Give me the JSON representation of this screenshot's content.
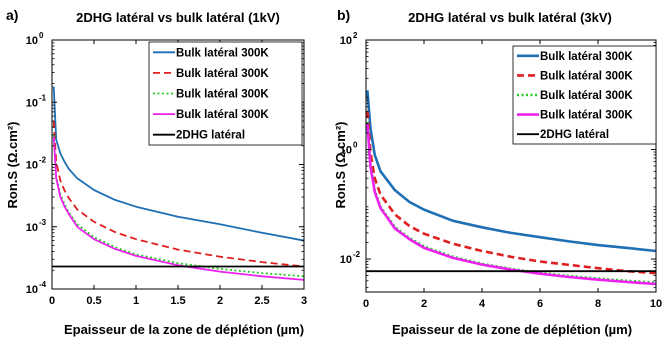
{
  "chart_data": [
    {
      "panel_label": "a)",
      "type": "line",
      "title": "2DHG latéral vs bulk latéral (1kV)",
      "xlabel": "Epaisseur de la zone de déplétion (µm)",
      "ylabel": "Ron.S (Ω.cm²)",
      "xscale": "linear",
      "yscale": "log",
      "xlim": [
        0,
        3
      ],
      "ylim": [
        0.0001,
        1
      ],
      "x_ticks": [
        0,
        0.5,
        1,
        1.5,
        2,
        2.5,
        3
      ],
      "x_tick_labels": [
        "0",
        "0.5",
        "1",
        "1.5",
        "2",
        "2.5",
        "3"
      ],
      "y_ticks": [
        0.0001,
        0.001,
        0.01,
        0.1,
        1
      ],
      "y_tick_labels": [
        [
          "10",
          "-4"
        ],
        [
          "10",
          "-3"
        ],
        [
          "10",
          "-2"
        ],
        [
          "10",
          "-1"
        ],
        [
          "10",
          "0"
        ]
      ],
      "grid": false,
      "legend_position": "top-right",
      "series": [
        {
          "name": "Bulk latéral 300K",
          "color": "#1f6fb5",
          "dash": "solid",
          "x": [
            0.02,
            0.05,
            0.1,
            0.15,
            0.2,
            0.3,
            0.5,
            0.75,
            1,
            1.5,
            2,
            2.5,
            3
          ],
          "y": [
            0.18,
            0.025,
            0.015,
            0.011,
            0.0085,
            0.006,
            0.0039,
            0.0027,
            0.0021,
            0.00145,
            0.0011,
            0.0008,
            0.0006
          ]
        },
        {
          "name": "Bulk latéral 300K",
          "color": "#e02020",
          "dash": "dashed",
          "x": [
            0.02,
            0.05,
            0.1,
            0.15,
            0.2,
            0.3,
            0.5,
            0.75,
            1,
            1.5,
            2,
            2.5,
            3
          ],
          "y": [
            0.05,
            0.011,
            0.0055,
            0.0038,
            0.0029,
            0.0019,
            0.0012,
            0.00082,
            0.00063,
            0.00043,
            0.00033,
            0.00027,
            0.00023
          ]
        },
        {
          "name": "Bulk latéral 300K",
          "color": "#22cc22",
          "dash": "dotted",
          "x": [
            0.02,
            0.05,
            0.1,
            0.15,
            0.2,
            0.3,
            0.5,
            0.75,
            1,
            1.5,
            2,
            2.5,
            3
          ],
          "y": [
            0.03,
            0.0065,
            0.0033,
            0.0023,
            0.0017,
            0.0011,
            0.00068,
            0.00047,
            0.00036,
            0.00026,
            0.00021,
            0.00018,
            0.00016
          ]
        },
        {
          "name": "Bulk latéral 300K",
          "color": "#ee22ee",
          "dash": "solid",
          "x": [
            0.02,
            0.05,
            0.1,
            0.15,
            0.2,
            0.3,
            0.5,
            0.75,
            1,
            1.5,
            2,
            2.5,
            3
          ],
          "y": [
            0.028,
            0.006,
            0.003,
            0.0021,
            0.0016,
            0.001,
            0.00063,
            0.00044,
            0.00034,
            0.00024,
            0.00019,
            0.00016,
            0.00014
          ]
        },
        {
          "name": "2DHG latéral",
          "color": "#000000",
          "dash": "solid",
          "x": [
            0,
            3
          ],
          "y": [
            0.00023,
            0.00023
          ]
        }
      ]
    },
    {
      "panel_label": "b)",
      "type": "line",
      "title": "2DHG latéral vs bulk latéral (3kV)",
      "xlabel": "Epaisseur de la zone de déplétion (µm)",
      "ylabel": "Ron.S (Ω.cm²)",
      "xscale": "linear",
      "yscale": "log",
      "xlim": [
        0,
        10
      ],
      "ylim": [
        0.0025,
        100
      ],
      "x_ticks": [
        0,
        2,
        4,
        6,
        8,
        10
      ],
      "x_tick_labels": [
        "0",
        "2",
        "4",
        "6",
        "8",
        "10"
      ],
      "y_ticks": [
        0.01,
        1,
        100
      ],
      "y_tick_labels": [
        [
          "10",
          "-2"
        ],
        [
          "10",
          "0"
        ],
        [
          "10",
          "2"
        ]
      ],
      "grid": false,
      "legend_position": "top-right",
      "series": [
        {
          "name": "Bulk latéral 300K",
          "color": "#1f6fb5",
          "dash": "solid",
          "x": [
            0.05,
            0.15,
            0.3,
            0.5,
            1,
            1.5,
            2,
            3,
            4,
            5,
            6,
            7,
            8,
            9,
            10
          ],
          "y": [
            12,
            2.5,
            0.8,
            0.4,
            0.18,
            0.11,
            0.08,
            0.05,
            0.038,
            0.03,
            0.025,
            0.021,
            0.018,
            0.016,
            0.014
          ]
        },
        {
          "name": "Bulk latéral 300K",
          "color": "#e02020",
          "dash": "dashed",
          "x": [
            0.05,
            0.15,
            0.3,
            0.5,
            1,
            1.5,
            2,
            3,
            4,
            5,
            6,
            7,
            8,
            9,
            10
          ],
          "y": [
            5,
            0.9,
            0.3,
            0.15,
            0.065,
            0.04,
            0.029,
            0.019,
            0.014,
            0.011,
            0.009,
            0.0078,
            0.0068,
            0.006,
            0.0055
          ]
        },
        {
          "name": "Bulk latéral 300K",
          "color": "#22cc22",
          "dash": "dotted",
          "x": [
            0.05,
            0.15,
            0.3,
            0.5,
            1,
            1.5,
            2,
            3,
            4,
            5,
            6,
            7,
            8,
            9,
            10
          ],
          "y": [
            3.2,
            0.55,
            0.18,
            0.09,
            0.038,
            0.024,
            0.017,
            0.011,
            0.0082,
            0.0066,
            0.0056,
            0.0049,
            0.0044,
            0.004,
            0.0037
          ]
        },
        {
          "name": "Bulk latéral 300K",
          "color": "#ee22ee",
          "dash": "solid",
          "x": [
            0.05,
            0.15,
            0.3,
            0.5,
            1,
            1.5,
            2,
            3,
            4,
            5,
            6,
            7,
            8,
            9,
            10
          ],
          "y": [
            3.0,
            0.5,
            0.17,
            0.085,
            0.036,
            0.023,
            0.016,
            0.0105,
            0.0079,
            0.0064,
            0.0054,
            0.0047,
            0.0042,
            0.0038,
            0.0035
          ]
        },
        {
          "name": "2DHG latéral",
          "color": "#000000",
          "dash": "solid",
          "x": [
            0,
            10
          ],
          "y": [
            0.006,
            0.006
          ]
        }
      ]
    }
  ]
}
